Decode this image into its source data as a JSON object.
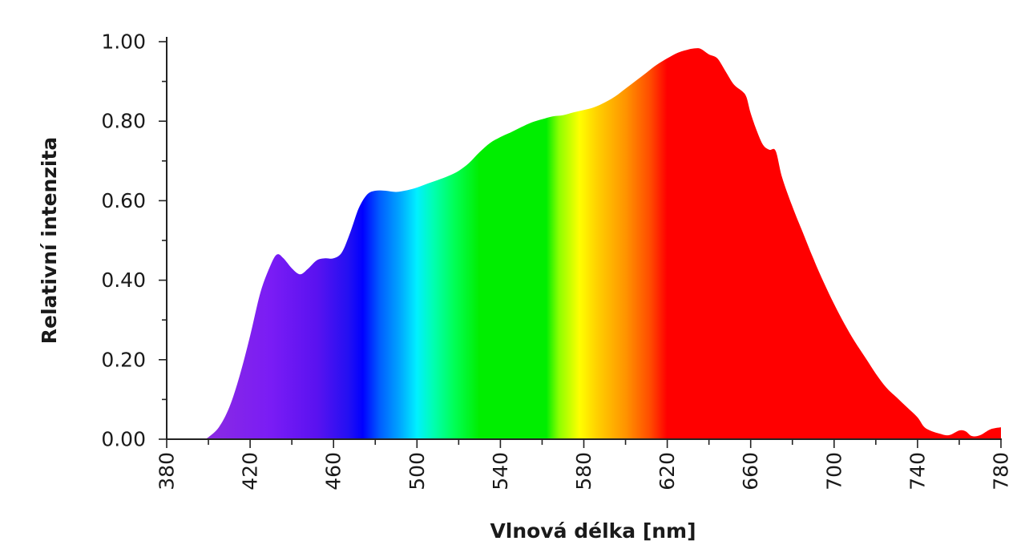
{
  "chart_data": {
    "type": "area",
    "title": "",
    "xlabel": "Vlnová délka [nm]",
    "ylabel": "Relativní intenzita",
    "xlim": [
      380,
      780
    ],
    "ylim": [
      0,
      1
    ],
    "x_ticks": [
      380,
      420,
      460,
      500,
      540,
      580,
      620,
      660,
      700,
      740,
      780
    ],
    "x_tick_labels": [
      "380",
      "420",
      "460",
      "500",
      "540",
      "580",
      "620",
      "660",
      "700",
      "740",
      "780"
    ],
    "y_ticks": [
      0,
      0.2,
      0.4,
      0.6,
      0.8,
      1.0
    ],
    "y_tick_labels": [
      "0.00",
      "0.20",
      "0.40",
      "0.60",
      "0.80",
      "1.00"
    ],
    "grid": false,
    "legend": "none",
    "fill": "visible-spectrum gradient",
    "series": [
      {
        "x": [
          398,
          400,
          405,
          410,
          415,
          420,
          425,
          430,
          433,
          436,
          440,
          444,
          448,
          452,
          456,
          460,
          464,
          468,
          472,
          476,
          480,
          485,
          490,
          495,
          500,
          505,
          510,
          515,
          520,
          525,
          530,
          535,
          540,
          545,
          550,
          555,
          560,
          565,
          570,
          575,
          580,
          585,
          590,
          595,
          600,
          605,
          610,
          615,
          620,
          625,
          630,
          633,
          636,
          640,
          644,
          648,
          652,
          656,
          658,
          660,
          663,
          666,
          669,
          672,
          675,
          680,
          685,
          690,
          695,
          700,
          705,
          710,
          715,
          720,
          725,
          730,
          735,
          740,
          743,
          746,
          750,
          755,
          760,
          763,
          766,
          770,
          775,
          780
        ],
        "y": [
          0.0,
          0.005,
          0.03,
          0.08,
          0.16,
          0.26,
          0.37,
          0.44,
          0.465,
          0.455,
          0.43,
          0.415,
          0.43,
          0.45,
          0.455,
          0.455,
          0.47,
          0.52,
          0.58,
          0.615,
          0.625,
          0.625,
          0.622,
          0.626,
          0.633,
          0.643,
          0.652,
          0.662,
          0.675,
          0.695,
          0.722,
          0.745,
          0.76,
          0.772,
          0.785,
          0.797,
          0.805,
          0.812,
          0.815,
          0.822,
          0.828,
          0.835,
          0.847,
          0.862,
          0.882,
          0.902,
          0.922,
          0.942,
          0.958,
          0.972,
          0.98,
          0.983,
          0.982,
          0.968,
          0.958,
          0.925,
          0.892,
          0.875,
          0.86,
          0.82,
          0.775,
          0.74,
          0.728,
          0.725,
          0.66,
          0.585,
          0.52,
          0.455,
          0.395,
          0.34,
          0.29,
          0.245,
          0.205,
          0.165,
          0.13,
          0.105,
          0.08,
          0.055,
          0.032,
          0.022,
          0.015,
          0.01,
          0.022,
          0.02,
          0.008,
          0.01,
          0.025,
          0.03
        ]
      }
    ]
  }
}
